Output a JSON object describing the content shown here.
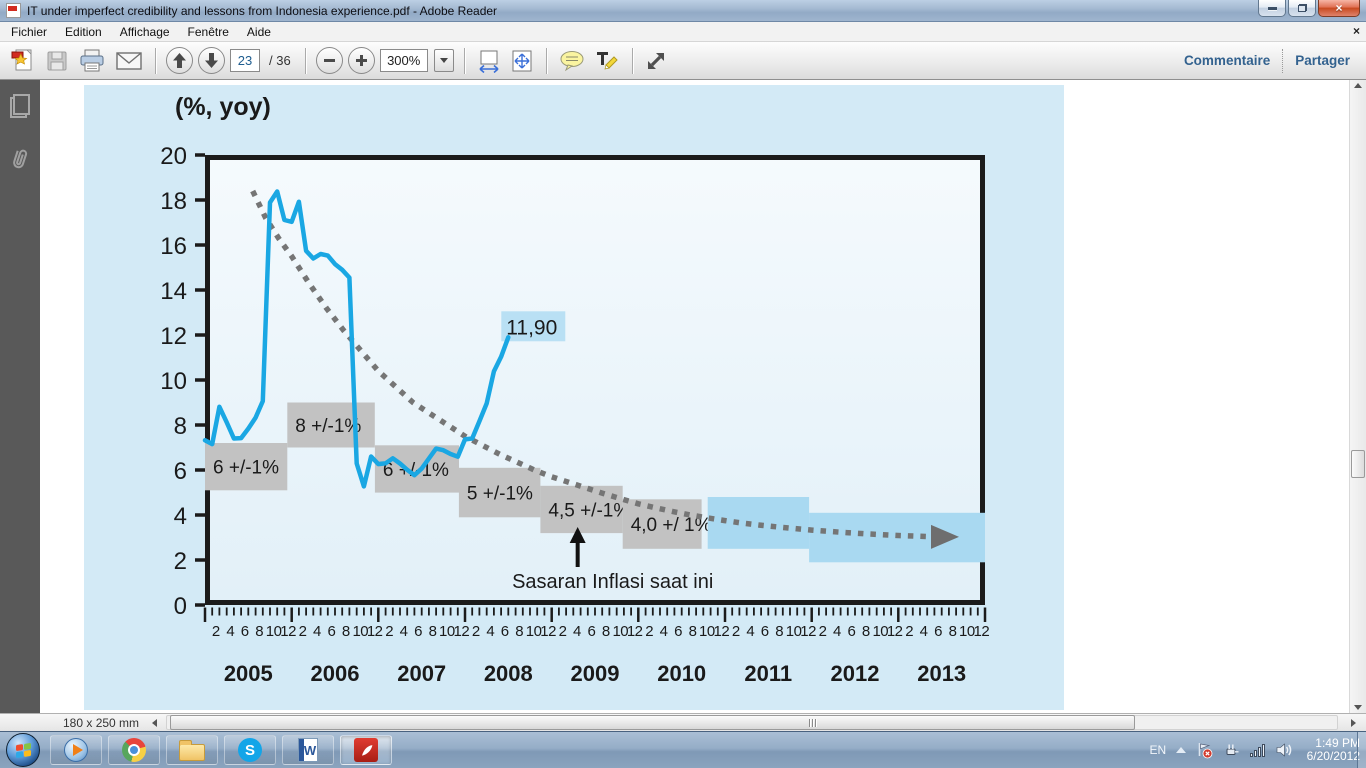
{
  "window": {
    "title": "IT under imperfect credibility and lessons from Indonesia experience.pdf - Adobe Reader"
  },
  "menubar": {
    "items": [
      "Fichier",
      "Edition",
      "Affichage",
      "Fenêtre",
      "Aide"
    ]
  },
  "toolbar": {
    "page_current": "23",
    "page_total": "/ 36",
    "zoom_level": "300%",
    "comment_label": "Commentaire",
    "share_label": "Partager"
  },
  "statusbar": {
    "doc_size": "180 x 250 mm"
  },
  "taskbar": {
    "apps": [
      "windows-media-player",
      "google-chrome",
      "windows-explorer",
      "skype",
      "microsoft-word",
      "adobe-reader"
    ],
    "tray": {
      "language": "EN",
      "time": "1:49 PM",
      "date": "6/20/2012"
    }
  },
  "chart_data": {
    "type": "line",
    "title": "(%, yoy)",
    "xlabel": "",
    "ylabel": "",
    "ylim": [
      0,
      20
    ],
    "yticks": [
      0,
      2,
      4,
      6,
      8,
      10,
      12,
      14,
      16,
      18,
      20
    ],
    "years": [
      2005,
      2006,
      2007,
      2008,
      2009,
      2010,
      2011,
      2012,
      2013
    ],
    "month_tick_labels": [
      2,
      4,
      6,
      8,
      10,
      12
    ],
    "grid": false,
    "legend": "none",
    "series": [
      {
        "name": "CPI inflation actual (monthly, % yoy)",
        "color": "#1aa7e3",
        "start_year": 2005,
        "monthly_values": [
          7.32,
          7.15,
          8.81,
          8.12,
          7.4,
          7.42,
          7.84,
          8.33,
          9.06,
          17.89,
          18.38,
          17.11,
          17.03,
          17.92,
          15.74,
          15.4,
          15.6,
          15.53,
          15.15,
          14.9,
          14.55,
          6.29,
          5.27,
          6.6,
          6.26,
          6.3,
          6.52,
          6.29,
          6.01,
          5.77,
          6.06,
          6.51,
          6.95,
          6.88,
          6.71,
          6.59,
          7.36,
          7.4,
          8.17,
          8.96,
          10.38,
          11.03,
          11.9
        ]
      }
    ],
    "disinflation_path": {
      "name": "disinflation path (dotted)",
      "color": "#757575",
      "style": "dotted",
      "points": [
        [
          2005.55,
          18.4
        ],
        [
          2005.7,
          17.2
        ],
        [
          2005.85,
          16.3
        ],
        [
          2006.0,
          15.5
        ],
        [
          2006.2,
          14.3
        ],
        [
          2006.4,
          13.2
        ],
        [
          2006.6,
          12.2
        ],
        [
          2006.8,
          11.3
        ],
        [
          2007.0,
          10.4
        ],
        [
          2007.2,
          9.7
        ],
        [
          2007.4,
          9.0
        ],
        [
          2007.6,
          8.5
        ],
        [
          2007.8,
          8.0
        ],
        [
          2008.0,
          7.5
        ],
        [
          2008.2,
          7.1
        ],
        [
          2008.4,
          6.7
        ],
        [
          2008.6,
          6.35
        ],
        [
          2008.8,
          6.0
        ],
        [
          2009.0,
          5.7
        ],
        [
          2009.2,
          5.45
        ],
        [
          2009.4,
          5.2
        ],
        [
          2009.6,
          4.95
        ],
        [
          2009.8,
          4.72
        ],
        [
          2010.0,
          4.5
        ],
        [
          2010.2,
          4.32
        ],
        [
          2010.4,
          4.15
        ],
        [
          2010.6,
          4.0
        ],
        [
          2010.8,
          3.87
        ],
        [
          2011.0,
          3.75
        ],
        [
          2011.2,
          3.64
        ],
        [
          2011.4,
          3.55
        ],
        [
          2011.6,
          3.47
        ],
        [
          2011.8,
          3.4
        ],
        [
          2012.0,
          3.33
        ],
        [
          2012.2,
          3.27
        ],
        [
          2012.4,
          3.22
        ],
        [
          2012.6,
          3.17
        ],
        [
          2012.8,
          3.13
        ],
        [
          2013.0,
          3.09
        ],
        [
          2013.2,
          3.06
        ],
        [
          2013.4,
          3.03
        ]
      ]
    },
    "target_boxes": [
      {
        "label": "6 +/-1%",
        "year_from": 2005.0,
        "year_to": 2005.95,
        "value_from": 5.1,
        "value_to": 7.2,
        "color": "#c2c2c2"
      },
      {
        "label": "8 +/-1%",
        "year_from": 2005.95,
        "year_to": 2006.96,
        "value_from": 7.0,
        "value_to": 9.0,
        "color": "#c2c2c2"
      },
      {
        "label": "6 +/-1%",
        "year_from": 2006.96,
        "year_to": 2007.93,
        "value_from": 5.0,
        "value_to": 7.1,
        "color": "#c2c2c2"
      },
      {
        "label": "5 +/-1%",
        "year_from": 2007.93,
        "year_to": 2008.87,
        "value_from": 3.9,
        "value_to": 6.1,
        "color": "#c2c2c2"
      },
      {
        "label": "4,5 +/-1%",
        "year_from": 2008.87,
        "year_to": 2009.82,
        "value_from": 3.2,
        "value_to": 5.3,
        "color": "#c2c2c2"
      },
      {
        "label": "4,0 +/ 1%",
        "year_from": 2009.82,
        "year_to": 2010.73,
        "value_from": 2.5,
        "value_to": 4.7,
        "color": "#c2c2c2"
      },
      {
        "label": "",
        "year_from": 2010.8,
        "year_to": 2011.97,
        "value_from": 2.5,
        "value_to": 4.8,
        "color": "#a9d9f1"
      },
      {
        "label": "",
        "year_from": 2011.97,
        "year_to": 2014.0,
        "value_from": 1.9,
        "value_to": 4.1,
        "color": "#a9d9f1"
      }
    ],
    "annotations": {
      "end_label": {
        "text": "11,90",
        "bg": "#b9e0f4"
      },
      "target_note": {
        "text": "Sasaran Inflasi saat ini",
        "arrow_x_year": 2009.3
      }
    }
  }
}
